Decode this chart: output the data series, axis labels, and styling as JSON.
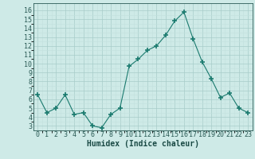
{
  "x": [
    0,
    1,
    2,
    3,
    4,
    5,
    6,
    7,
    8,
    9,
    10,
    11,
    12,
    13,
    14,
    15,
    16,
    17,
    18,
    19,
    20,
    21,
    22,
    23
  ],
  "y": [
    6.5,
    4.5,
    5.0,
    6.5,
    4.3,
    4.5,
    3.0,
    2.8,
    4.3,
    5.0,
    9.7,
    10.5,
    11.5,
    12.0,
    13.2,
    14.8,
    15.8,
    12.8,
    10.2,
    8.3,
    6.2,
    6.7,
    5.0,
    4.5
  ],
  "line_color": "#1a7a6e",
  "marker": "+",
  "markersize": 4,
  "markeredgewidth": 1.2,
  "bg_color": "#ceeae7",
  "grid_color_major": "#a8ccc9",
  "grid_color_minor": "#c2e0de",
  "tick_label_color": "#2a5a55",
  "xlabel": "Humidex (Indice chaleur)",
  "xlabel_color": "#1a4a45",
  "xlabel_fontsize": 7,
  "tick_fontsize": 6,
  "ylim": [
    2.5,
    16.8
  ],
  "xlim": [
    -0.5,
    23.5
  ],
  "yticks": [
    3,
    4,
    5,
    6,
    7,
    8,
    9,
    10,
    11,
    12,
    13,
    14,
    15,
    16
  ],
  "xticks": [
    0,
    1,
    2,
    3,
    4,
    5,
    6,
    7,
    8,
    9,
    10,
    11,
    12,
    13,
    14,
    15,
    16,
    17,
    18,
    19,
    20,
    21,
    22,
    23
  ]
}
